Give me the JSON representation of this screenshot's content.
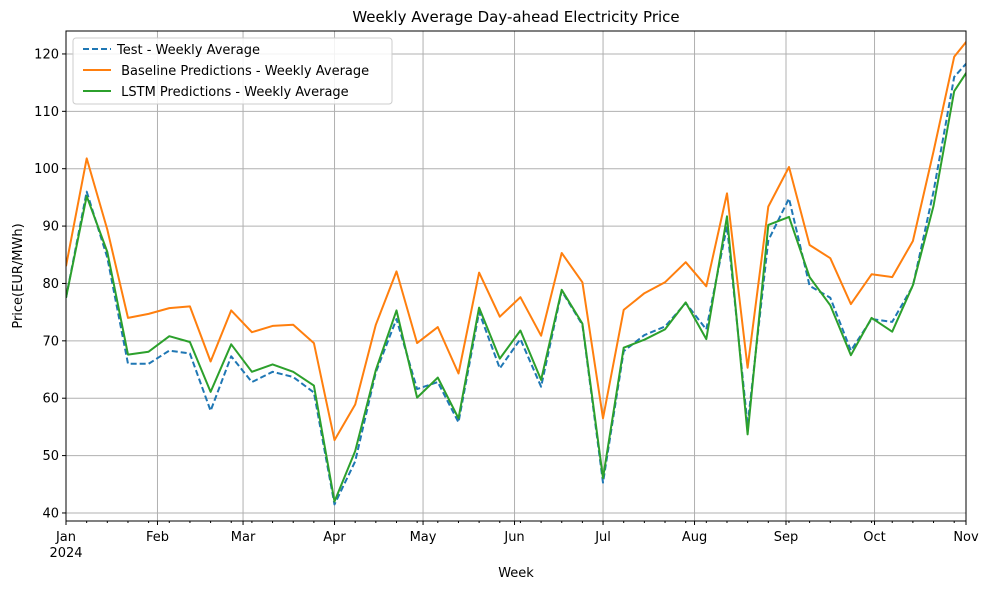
{
  "chart_data": {
    "type": "line",
    "title": "Weekly Average Day-ahead Electricity Price",
    "xlabel": "Week",
    "ylabel": "Price(EUR/MWh)",
    "ylim": [
      38.6,
      124
    ],
    "xlim": [
      "2024-01-01",
      "2024-11-01"
    ],
    "yticks": [
      40,
      50,
      60,
      70,
      80,
      90,
      100,
      110,
      120
    ],
    "xticks": [
      {
        "date": "2024-01-01",
        "label": "Jan",
        "sublabel": "2024"
      },
      {
        "date": "2024-02-01",
        "label": "Feb"
      },
      {
        "date": "2024-03-01",
        "label": "Mar"
      },
      {
        "date": "2024-04-01",
        "label": "Apr"
      },
      {
        "date": "2024-05-01",
        "label": "May"
      },
      {
        "date": "2024-06-01",
        "label": "Jun"
      },
      {
        "date": "2024-07-01",
        "label": "Jul"
      },
      {
        "date": "2024-08-01",
        "label": "Aug"
      },
      {
        "date": "2024-09-01",
        "label": "Sep"
      },
      {
        "date": "2024-10-01",
        "label": "Oct"
      },
      {
        "date": "2024-11-01",
        "label": "Nov"
      }
    ],
    "grid": true,
    "legend_position": "upper-left",
    "x": [
      "2024-01-01",
      "2024-01-08",
      "2024-01-15",
      "2024-01-22",
      "2024-01-29",
      "2024-02-05",
      "2024-02-12",
      "2024-02-19",
      "2024-02-26",
      "2024-03-04",
      "2024-03-11",
      "2024-03-18",
      "2024-03-25",
      "2024-04-01",
      "2024-04-08",
      "2024-04-15",
      "2024-04-22",
      "2024-04-29",
      "2024-05-06",
      "2024-05-13",
      "2024-05-20",
      "2024-05-27",
      "2024-06-03",
      "2024-06-10",
      "2024-06-17",
      "2024-06-24",
      "2024-07-01",
      "2024-07-08",
      "2024-07-15",
      "2024-07-22",
      "2024-07-29",
      "2024-08-05",
      "2024-08-12",
      "2024-08-19",
      "2024-08-26",
      "2024-09-02",
      "2024-09-09",
      "2024-09-16",
      "2024-09-23",
      "2024-09-30",
      "2024-10-07",
      "2024-10-14",
      "2024-10-21",
      "2024-10-28",
      "2024-11-04"
    ],
    "series": [
      {
        "name": "Test - Weekly Average",
        "color": "#1f77b4",
        "dash": "dashed",
        "values": [
          77.5,
          96.0,
          84.5,
          66.0,
          66.0,
          68.3,
          67.8,
          57.8,
          67.3,
          62.8,
          64.6,
          63.7,
          61.0,
          41.5,
          49.0,
          64.5,
          73.8,
          61.6,
          62.8,
          55.8,
          75.0,
          65.2,
          70.3,
          62.0,
          78.7,
          72.8,
          45.3,
          68.2,
          71.0,
          72.5,
          76.6,
          72.0,
          90.0,
          55.3,
          87.5,
          94.8,
          79.6,
          77.5,
          68.3,
          73.8,
          73.3,
          79.6,
          96.0,
          116.0,
          120.0
        ]
      },
      {
        "name": " Baseline Predictions - Weekly Average",
        "color": "#ff7f0e",
        "dash": "solid",
        "values": [
          83.0,
          101.8,
          89.4,
          74.0,
          74.7,
          75.7,
          76.0,
          66.4,
          75.3,
          71.5,
          72.6,
          72.8,
          69.6,
          52.7,
          58.9,
          72.8,
          82.1,
          69.6,
          72.4,
          64.3,
          81.9,
          74.2,
          77.6,
          70.9,
          85.3,
          80.2,
          56.5,
          75.4,
          78.3,
          80.2,
          83.7,
          79.5,
          95.7,
          65.3,
          93.4,
          100.3,
          86.7,
          84.4,
          76.4,
          81.6,
          81.1,
          87.4,
          103.0,
          119.5,
          124.0
        ]
      },
      {
        "name": " LSTM Predictions - Weekly Average",
        "color": "#2ca02c",
        "dash": "solid",
        "values": [
          77.5,
          95.2,
          85.5,
          67.6,
          68.1,
          70.8,
          69.8,
          61.1,
          69.4,
          64.6,
          65.9,
          64.6,
          62.2,
          42.0,
          50.8,
          64.9,
          75.3,
          60.1,
          63.6,
          56.5,
          75.8,
          66.9,
          71.8,
          63.2,
          78.9,
          73.0,
          46.1,
          68.8,
          70.2,
          72.0,
          76.7,
          70.3,
          91.7,
          53.7,
          90.2,
          91.6,
          81.1,
          76.2,
          67.5,
          74.0,
          71.6,
          79.7,
          93.5,
          113.5,
          119.0
        ]
      }
    ]
  }
}
